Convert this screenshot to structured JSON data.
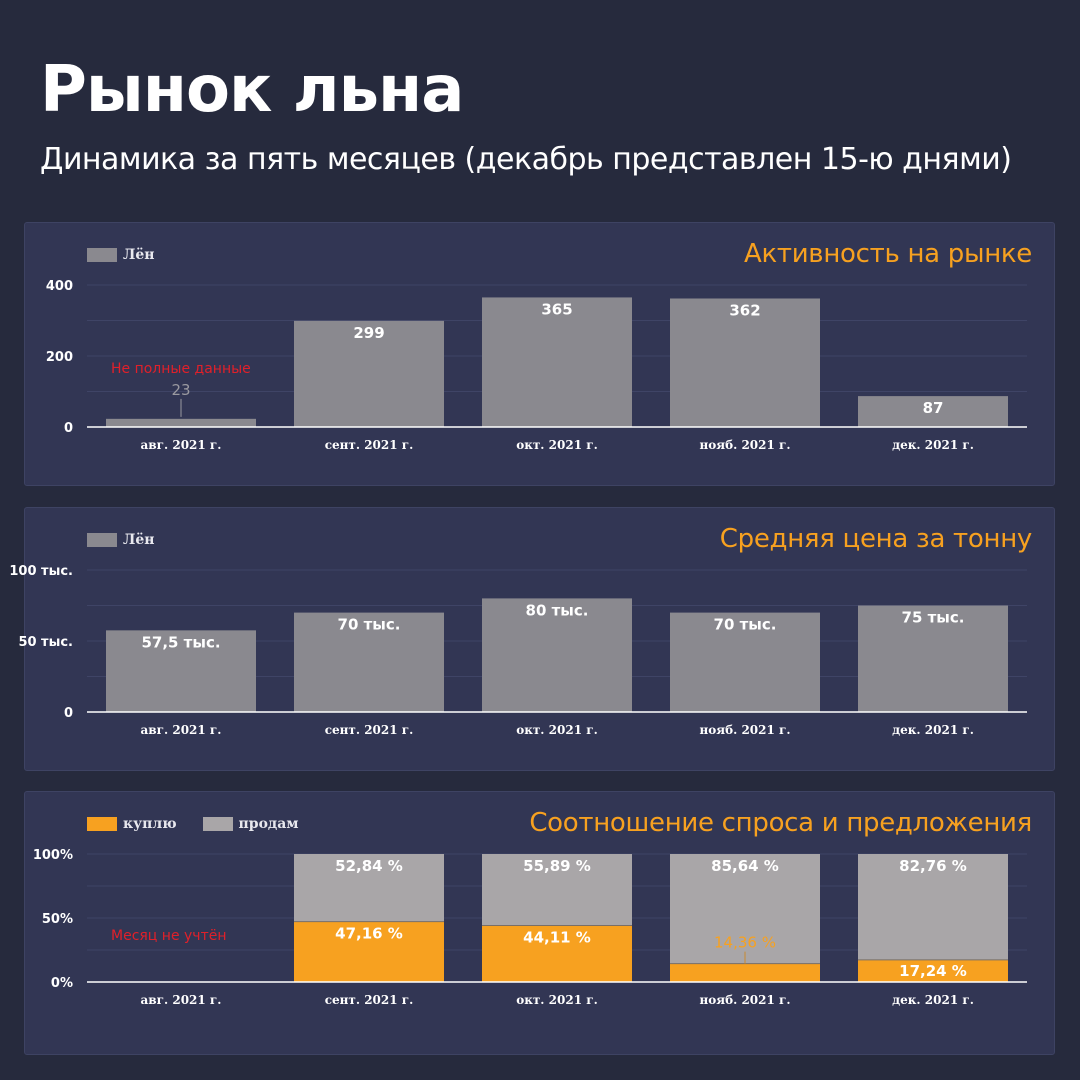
{
  "header": {
    "title": "Рынок льна",
    "subtitle": "Динамика за пять месяцев (декабрь представлен 15-ю днями)"
  },
  "colors": {
    "background": "#262a3d",
    "panel": "#323654",
    "accent": "#f7a120",
    "bar_gray": "#8a898f",
    "sell_gray": "#a9a6a8",
    "buy_orange": "#f7a120",
    "note_red": "#e0202a"
  },
  "chart_data": [
    {
      "type": "bar",
      "title": "Активность на рынке",
      "legend": [
        "Лён"
      ],
      "categories": [
        "авг. 2021 г.",
        "сент. 2021 г.",
        "окт. 2021 г.",
        "нояб. 2021 г.",
        "дек. 2021 г."
      ],
      "values": [
        23,
        299,
        365,
        362,
        87
      ],
      "value_labels": [
        "23",
        "299",
        "365",
        "362",
        "87"
      ],
      "yticks": [
        "0",
        "200",
        "400"
      ],
      "ylim": [
        0,
        400
      ],
      "note": "Не полные данные"
    },
    {
      "type": "bar",
      "title": "Средняя цена за тонну",
      "legend": [
        "Лён"
      ],
      "categories": [
        "авг. 2021 г.",
        "сент. 2021 г.",
        "окт. 2021 г.",
        "нояб. 2021 г.",
        "дек. 2021 г."
      ],
      "values": [
        57500,
        70000,
        80000,
        70000,
        75000
      ],
      "value_labels": [
        "57,5 тыс.",
        "70 тыс.",
        "80 тыс.",
        "70 тыс.",
        "75 тыс."
      ],
      "yticks": [
        "0",
        "50 тыс.",
        "100 тыс."
      ],
      "ylim": [
        0,
        100000
      ]
    },
    {
      "type": "bar",
      "stacked": true,
      "title": "Соотношение спроса и предложения",
      "legend": [
        "куплю",
        "продам"
      ],
      "categories": [
        "авг. 2021 г.",
        "сент. 2021 г.",
        "окт. 2021 г.",
        "нояб. 2021 г.",
        "дек. 2021 г."
      ],
      "series": [
        {
          "name": "куплю",
          "values": [
            null,
            47.16,
            44.11,
            14.36,
            17.24
          ],
          "labels": [
            "",
            "47,16 %",
            "44,11 %",
            "14,36 %",
            "17,24 %"
          ]
        },
        {
          "name": "продам",
          "values": [
            null,
            52.84,
            55.89,
            85.64,
            82.76
          ],
          "labels": [
            "",
            "52,84 %",
            "55,89 %",
            "85,64 %",
            "82,76 %"
          ]
        }
      ],
      "yticks": [
        "0%",
        "50%",
        "100%"
      ],
      "ylim": [
        0,
        100
      ],
      "note": "Месяц не учтён"
    }
  ]
}
